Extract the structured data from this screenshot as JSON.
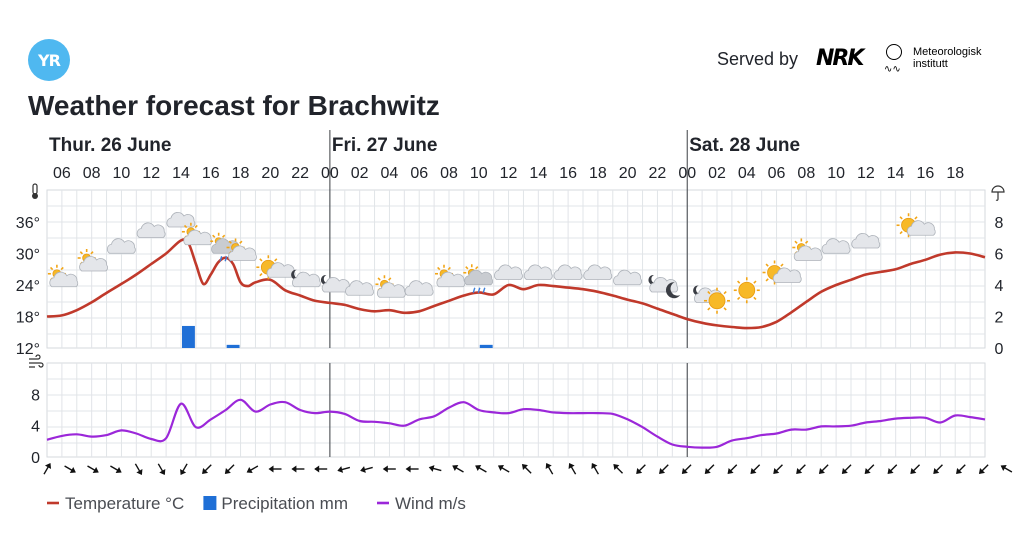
{
  "header": {
    "logo_text": "YR",
    "served_by": "Served by",
    "nrk_logo": "NRK",
    "met_line1": "Meteorologisk",
    "met_line2": "institutt",
    "title": "Weather forecast for Brachwitz"
  },
  "chart_data": {
    "type": "line",
    "days": [
      {
        "label": "Thur. 26 June",
        "start_hour": 5
      },
      {
        "label": "Fri. 27 June",
        "start_hour": 24
      },
      {
        "label": "Sat. 28 June",
        "start_hour": 48
      }
    ],
    "hour_labels": [
      "06",
      "08",
      "10",
      "12",
      "14",
      "16",
      "18",
      "20",
      "22",
      "00",
      "02",
      "04",
      "06",
      "08",
      "10",
      "12",
      "14",
      "16",
      "18",
      "20",
      "22",
      "00",
      "02",
      "04",
      "06",
      "08",
      "10",
      "12",
      "14",
      "16",
      "18"
    ],
    "temperature_axis": {
      "ticks": [
        "12°",
        "18°",
        "24°",
        "30°",
        "36°"
      ],
      "range": [
        12,
        36
      ]
    },
    "precipitation_axis": {
      "ticks": [
        "0",
        "2",
        "4",
        "6",
        "8"
      ],
      "range": [
        0,
        8
      ]
    },
    "wind_axis": {
      "ticks": [
        "0",
        "4",
        "8"
      ],
      "range": [
        0,
        12
      ]
    },
    "series": [
      {
        "name": "Temperature °C",
        "color": "#c0392b",
        "values": [
          [
            5,
            18.0
          ],
          [
            6,
            18.2
          ],
          [
            7,
            19.2
          ],
          [
            8,
            20.7
          ],
          [
            9,
            22.5
          ],
          [
            10,
            24.2
          ],
          [
            11,
            26.0
          ],
          [
            12,
            28.0
          ],
          [
            13,
            30.0
          ],
          [
            14,
            32.5
          ],
          [
            14.5,
            32.0
          ],
          [
            15,
            28.0
          ],
          [
            15.5,
            24.2
          ],
          [
            16,
            26.0
          ],
          [
            16.5,
            28.3
          ],
          [
            17,
            29.2
          ],
          [
            17.5,
            28.0
          ],
          [
            18,
            24.5
          ],
          [
            18.5,
            23.8
          ],
          [
            19,
            24.5
          ],
          [
            20,
            25.0
          ],
          [
            21,
            23.0
          ],
          [
            22,
            22.0
          ],
          [
            23,
            21.0
          ],
          [
            24,
            20.6
          ],
          [
            25,
            20.2
          ],
          [
            26,
            19.4
          ],
          [
            27,
            19.0
          ],
          [
            28,
            19.2
          ],
          [
            29,
            18.7
          ],
          [
            30,
            19.0
          ],
          [
            31,
            20.0
          ],
          [
            32,
            21.0
          ],
          [
            33,
            22.0
          ],
          [
            34,
            22.6
          ],
          [
            35,
            22.2
          ],
          [
            36,
            24.0
          ],
          [
            37,
            23.2
          ],
          [
            38,
            24.0
          ],
          [
            39,
            23.8
          ],
          [
            40,
            23.5
          ],
          [
            41,
            23.2
          ],
          [
            42,
            22.7
          ],
          [
            43,
            22.0
          ],
          [
            44,
            21.2
          ],
          [
            45,
            20.5
          ],
          [
            46,
            19.5
          ],
          [
            47,
            18.5
          ],
          [
            48,
            17.5
          ],
          [
            49,
            16.8
          ],
          [
            50,
            16.3
          ],
          [
            51,
            16.0
          ],
          [
            52,
            15.8
          ],
          [
            53,
            16.0
          ],
          [
            54,
            17.0
          ],
          [
            55,
            18.8
          ],
          [
            56,
            20.8
          ],
          [
            57,
            22.7
          ],
          [
            58,
            24.0
          ],
          [
            59,
            25.0
          ],
          [
            60,
            26.0
          ],
          [
            61,
            26.5
          ],
          [
            62,
            27.0
          ],
          [
            63,
            28.0
          ],
          [
            64,
            28.8
          ],
          [
            65,
            29.8
          ],
          [
            66,
            30.2
          ],
          [
            67,
            30.0
          ],
          [
            68,
            29.3
          ]
        ]
      },
      {
        "name": "Precipitation mm",
        "color": "#1f6fd6",
        "values": [
          [
            14.5,
            1.4
          ],
          [
            17.5,
            0.2
          ],
          [
            34.5,
            0.2
          ]
        ]
      },
      {
        "name": "Wind m/s",
        "color": "#9b27d9",
        "values": [
          [
            5,
            2.2
          ],
          [
            6,
            2.7
          ],
          [
            7,
            2.9
          ],
          [
            8,
            2.6
          ],
          [
            9,
            2.8
          ],
          [
            10,
            3.4
          ],
          [
            11,
            3.0
          ],
          [
            12,
            2.3
          ],
          [
            13,
            2.4
          ],
          [
            14,
            6.8
          ],
          [
            15,
            3.8
          ],
          [
            16,
            4.8
          ],
          [
            17,
            6.0
          ],
          [
            18,
            7.3
          ],
          [
            19,
            5.8
          ],
          [
            20,
            6.7
          ],
          [
            21,
            7.0
          ],
          [
            22,
            6.0
          ],
          [
            23,
            5.6
          ],
          [
            24,
            5.8
          ],
          [
            25,
            5.5
          ],
          [
            26,
            4.6
          ],
          [
            27,
            4.5
          ],
          [
            28,
            4.3
          ],
          [
            29,
            4.0
          ],
          [
            30,
            4.8
          ],
          [
            31,
            5.2
          ],
          [
            32,
            6.3
          ],
          [
            33,
            7.0
          ],
          [
            34,
            6.0
          ],
          [
            35,
            5.7
          ],
          [
            36,
            5.6
          ],
          [
            37,
            6.1
          ],
          [
            38,
            6.0
          ],
          [
            39,
            5.7
          ],
          [
            40,
            5.6
          ],
          [
            41,
            5.6
          ],
          [
            42,
            5.6
          ],
          [
            43,
            5.5
          ],
          [
            44,
            4.8
          ],
          [
            45,
            3.8
          ],
          [
            46,
            2.6
          ],
          [
            47,
            1.6
          ],
          [
            48,
            1.3
          ],
          [
            49,
            1.2
          ],
          [
            50,
            1.3
          ],
          [
            51,
            2.1
          ],
          [
            52,
            2.4
          ],
          [
            53,
            2.8
          ],
          [
            54,
            3.0
          ],
          [
            55,
            3.5
          ],
          [
            56,
            3.5
          ],
          [
            57,
            3.9
          ],
          [
            58,
            3.9
          ],
          [
            59,
            4.0
          ],
          [
            60,
            4.4
          ],
          [
            61,
            4.6
          ],
          [
            62,
            4.9
          ],
          [
            63,
            5.0
          ],
          [
            64,
            5.0
          ],
          [
            65,
            4.4
          ],
          [
            66,
            5.3
          ],
          [
            67,
            5.1
          ],
          [
            68,
            4.8
          ]
        ]
      }
    ],
    "weather_icons": [
      {
        "hour": 6,
        "temp": 25,
        "icon": "partly-cloudy-day"
      },
      {
        "hour": 8,
        "temp": 28,
        "icon": "partly-cloudy-day"
      },
      {
        "hour": 10,
        "temp": 31,
        "icon": "cloudy"
      },
      {
        "hour": 12,
        "temp": 34,
        "icon": "cloudy"
      },
      {
        "hour": 14,
        "temp": 36,
        "icon": "cloudy"
      },
      {
        "hour": 15,
        "temp": 33,
        "icon": "partly-cloudy-day"
      },
      {
        "hour": 17,
        "temp": 31,
        "icon": "rain-showers"
      },
      {
        "hour": 18,
        "temp": 30,
        "icon": "partly-cloudy-day"
      },
      {
        "hour": 20,
        "temp": 27,
        "icon": "sun-with-cloud"
      },
      {
        "hour": 22,
        "temp": 25,
        "icon": "partly-cloudy-night"
      },
      {
        "hour": 24,
        "temp": 24,
        "icon": "partly-cloudy-night"
      },
      {
        "hour": 26,
        "temp": 23,
        "icon": "cloudy"
      },
      {
        "hour": 28,
        "temp": 23,
        "icon": "partly-cloudy-day"
      },
      {
        "hour": 30,
        "temp": 23,
        "icon": "cloudy"
      },
      {
        "hour": 32,
        "temp": 25,
        "icon": "partly-cloudy-day"
      },
      {
        "hour": 34,
        "temp": 25,
        "icon": "rain-showers"
      },
      {
        "hour": 36,
        "temp": 26,
        "icon": "cloudy"
      },
      {
        "hour": 38,
        "temp": 26,
        "icon": "cloudy"
      },
      {
        "hour": 40,
        "temp": 26,
        "icon": "cloudy"
      },
      {
        "hour": 42,
        "temp": 26,
        "icon": "cloudy"
      },
      {
        "hour": 44,
        "temp": 25,
        "icon": "cloudy"
      },
      {
        "hour": 46,
        "temp": 24,
        "icon": "partly-cloudy-night"
      },
      {
        "hour": 47,
        "temp": 23,
        "icon": "moon"
      },
      {
        "hour": 49,
        "temp": 22,
        "icon": "partly-cloudy-night"
      },
      {
        "hour": 50,
        "temp": 21,
        "icon": "sun"
      },
      {
        "hour": 52,
        "temp": 23,
        "icon": "sun"
      },
      {
        "hour": 54,
        "temp": 26,
        "icon": "sun-with-cloud"
      },
      {
        "hour": 56,
        "temp": 30,
        "icon": "partly-cloudy-day"
      },
      {
        "hour": 58,
        "temp": 31,
        "icon": "cloudy"
      },
      {
        "hour": 60,
        "temp": 32,
        "icon": "cloudy"
      },
      {
        "hour": 63,
        "temp": 35,
        "icon": "sun-with-cloud"
      }
    ],
    "wind_direction_angles": [
      210,
      300,
      300,
      300,
      330,
      330,
      30,
      45,
      45,
      60,
      90,
      90,
      90,
      75,
      75,
      90,
      90,
      105,
      120,
      120,
      120,
      135,
      150,
      150,
      150,
      135,
      45,
      45,
      45,
      45,
      45,
      45,
      45,
      45,
      45,
      45,
      45,
      45,
      45,
      45,
      45,
      45,
      120
    ],
    "legend": [
      {
        "label": "Temperature °C",
        "color": "#c0392b",
        "kind": "line"
      },
      {
        "label": "Precipitation mm",
        "color": "#1f6fd6",
        "kind": "box"
      },
      {
        "label": "Wind m/s",
        "color": "#9b27d9",
        "kind": "line"
      }
    ]
  }
}
